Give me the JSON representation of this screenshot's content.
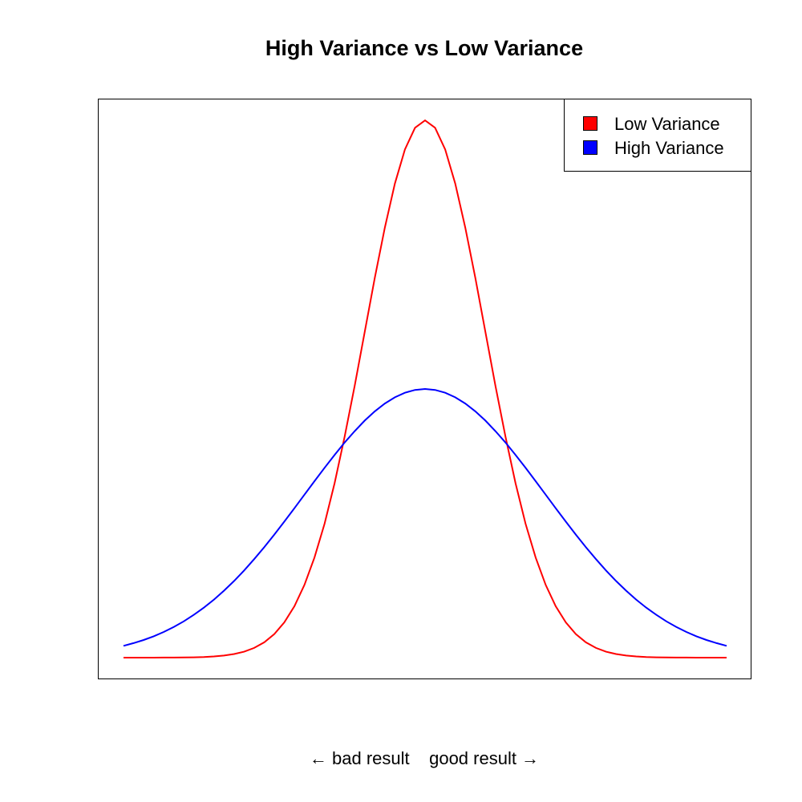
{
  "chart_data": {
    "type": "line",
    "title": "High Variance vs Low Variance",
    "xlabel": "← bad result    good result →",
    "ylabel": "",
    "xlim": [
      -3,
      3
    ],
    "ylim": [
      0,
      0.665
    ],
    "axes_shown": false,
    "grid": false,
    "legend_position": "top-right",
    "x_samples": 61,
    "series": [
      {
        "name": "Low Variance",
        "color": "#ff0000",
        "distribution": "normal",
        "mean": 0,
        "sd": 0.6
      },
      {
        "name": "High Variance",
        "color": "#0000ff",
        "distribution": "normal",
        "mean": 0,
        "sd": 1.2
      }
    ]
  }
}
